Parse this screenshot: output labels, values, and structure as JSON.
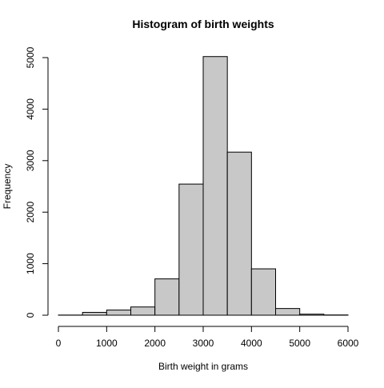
{
  "chart_data": {
    "type": "bar",
    "title": "Histogram of birth weights",
    "xlabel": "Birth weight in grams",
    "ylabel": "Frequency",
    "bin_edges": [
      0,
      500,
      1000,
      1500,
      2000,
      2500,
      3000,
      3500,
      4000,
      4500,
      5000,
      5500,
      6000
    ],
    "values": [
      3,
      55,
      100,
      160,
      705,
      2545,
      5020,
      3165,
      900,
      130,
      20,
      5
    ],
    "xlim": [
      0,
      6000
    ],
    "ylim": [
      0,
      5000
    ],
    "x_ticks": [
      0,
      1000,
      2000,
      3000,
      4000,
      5000,
      6000
    ],
    "y_ticks": [
      0,
      1000,
      2000,
      3000,
      4000,
      5000
    ],
    "x_tick_labels": [
      "0",
      "1000",
      "2000",
      "3000",
      "4000",
      "5000",
      "6000"
    ],
    "y_tick_labels": [
      "0",
      "1000",
      "2000",
      "3000",
      "4000",
      "5000"
    ],
    "grid": false,
    "bar_color": "#c8c8c8",
    "edge_color": "#000000"
  }
}
